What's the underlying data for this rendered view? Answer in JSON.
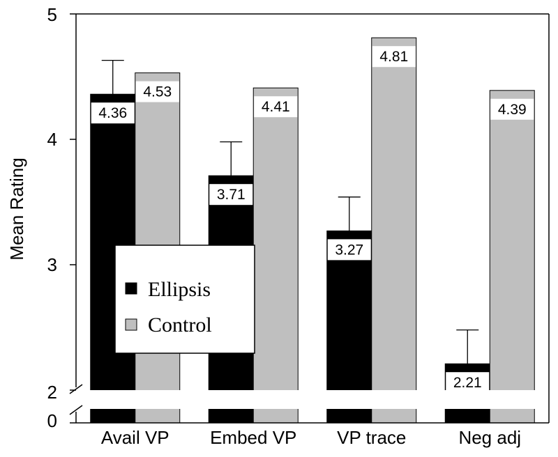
{
  "chart_data": {
    "type": "bar",
    "categories": [
      "Avail VP",
      "Embed VP",
      "VP trace",
      "Neg adj"
    ],
    "series": [
      {
        "name": "Ellipsis",
        "values": [
          4.36,
          3.71,
          3.27,
          2.21
        ],
        "error_upper": [
          4.63,
          3.98,
          3.54,
          2.48
        ],
        "color": "#000000"
      },
      {
        "name": "Control",
        "values": [
          4.53,
          4.41,
          4.81,
          4.39
        ],
        "color": "#bfbfbf"
      }
    ],
    "value_labels": {
      "Ellipsis": [
        "4.36",
        "3.71",
        "3.27",
        "2.21"
      ],
      "Control": [
        "4.53",
        "4.41",
        "4.81",
        "4.39"
      ]
    },
    "ylabel": "Mean Rating",
    "xlabel": "",
    "ylim": [
      0,
      5
    ],
    "axis_break": [
      0,
      2
    ],
    "yticks": [
      {
        "value": 0,
        "label": "0"
      },
      {
        "value": 2,
        "label": "2"
      },
      {
        "value": 3,
        "label": "3"
      },
      {
        "value": 4,
        "label": "4"
      },
      {
        "value": 5,
        "label": "5"
      }
    ],
    "legend_position": "center-left",
    "grid": false
  }
}
